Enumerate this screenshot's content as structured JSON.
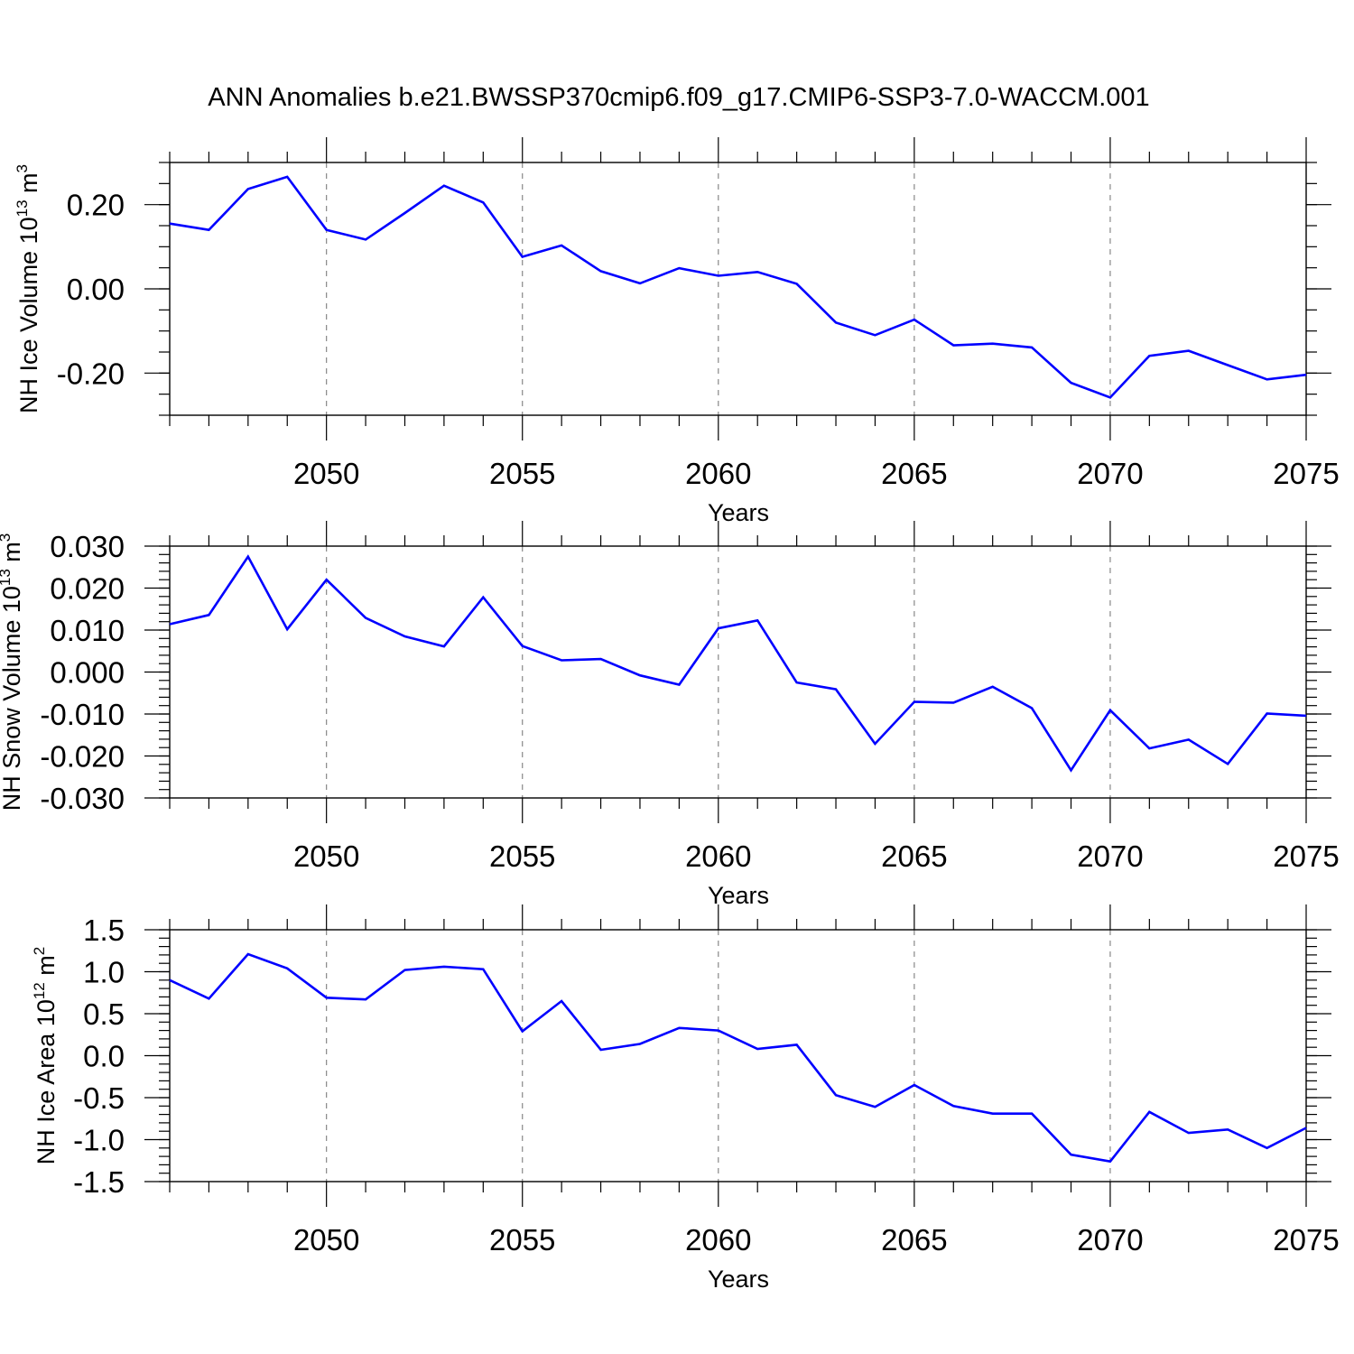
{
  "title": "ANN Anomalies b.e21.BWSSP370cmip6.f09_g17.CMIP6-SSP3-7.0-WACCM.001",
  "line_color": "#0000ff",
  "chart_data": [
    {
      "type": "line",
      "ylabel": {
        "main": "NH Ice Volume 10",
        "exp": "13",
        "unit": " m",
        "unit_exp": "3"
      },
      "xlabel": "Years",
      "xlim": [
        2046,
        2075
      ],
      "ylim": [
        -0.3,
        0.3
      ],
      "yticks": [
        -0.2,
        0.0,
        0.2
      ],
      "ytick_labels": [
        "-0.20",
        "0.00",
        "0.20"
      ],
      "yminor_step": 0.05,
      "xticks": [
        2050,
        2055,
        2060,
        2065,
        2070,
        2075
      ],
      "xtick_labels": [
        "2050",
        "2055",
        "2060",
        "2065",
        "2070",
        "2075"
      ],
      "grid": "vertical dashed at major x ticks",
      "x": [
        2046,
        2047,
        2048,
        2049,
        2050,
        2051,
        2052,
        2053,
        2054,
        2055,
        2056,
        2057,
        2058,
        2059,
        2060,
        2061,
        2062,
        2063,
        2064,
        2065,
        2066,
        2067,
        2068,
        2069,
        2070,
        2071,
        2072,
        2073,
        2074,
        2075
      ],
      "values": [
        0.155,
        0.14,
        0.237,
        0.266,
        0.14,
        0.117,
        0.18,
        0.245,
        0.205,
        0.076,
        0.103,
        0.042,
        0.013,
        0.049,
        0.031,
        0.04,
        0.012,
        -0.08,
        -0.11,
        -0.073,
        -0.134,
        -0.13,
        -0.139,
        -0.223,
        -0.258,
        -0.159,
        -0.147,
        -0.181,
        -0.215,
        -0.204
      ]
    },
    {
      "type": "line",
      "ylabel": {
        "main": "NH Snow Volume 10",
        "exp": "13",
        "unit": " m",
        "unit_exp": "3"
      },
      "xlabel": "Years",
      "xlim": [
        2046,
        2075
      ],
      "ylim": [
        -0.03,
        0.03
      ],
      "yticks": [
        -0.03,
        -0.02,
        -0.01,
        0.0,
        0.01,
        0.02,
        0.03
      ],
      "ytick_labels": [
        "-0.030",
        "-0.020",
        "-0.010",
        "0.000",
        "0.010",
        "0.020",
        "0.030"
      ],
      "yminor_step": 0.002,
      "xticks": [
        2050,
        2055,
        2060,
        2065,
        2070,
        2075
      ],
      "xtick_labels": [
        "2050",
        "2055",
        "2060",
        "2065",
        "2070",
        "2075"
      ],
      "grid": "vertical dashed at major x ticks",
      "x": [
        2046,
        2047,
        2048,
        2049,
        2050,
        2051,
        2052,
        2053,
        2054,
        2055,
        2056,
        2057,
        2058,
        2059,
        2060,
        2061,
        2062,
        2063,
        2064,
        2065,
        2066,
        2067,
        2068,
        2069,
        2070,
        2071,
        2072,
        2073,
        2074,
        2075
      ],
      "values": [
        0.0114,
        0.0136,
        0.0275,
        0.0102,
        0.022,
        0.0129,
        0.0085,
        0.0061,
        0.0178,
        0.0062,
        0.0028,
        0.0031,
        -0.0008,
        -0.003,
        0.0104,
        0.0123,
        -0.0025,
        -0.0041,
        -0.0171,
        -0.0071,
        -0.0073,
        -0.0035,
        -0.0086,
        -0.0234,
        -0.0091,
        -0.0182,
        -0.0161,
        -0.0219,
        -0.0099,
        -0.0104
      ]
    },
    {
      "type": "line",
      "ylabel": {
        "main": "NH Ice Area 10",
        "exp": "12",
        "unit": " m",
        "unit_exp": "2"
      },
      "xlabel": "Years",
      "xlim": [
        2046,
        2075
      ],
      "ylim": [
        -1.5,
        1.5
      ],
      "yticks": [
        -1.5,
        -1.0,
        -0.5,
        0.0,
        0.5,
        1.0,
        1.5
      ],
      "ytick_labels": [
        "-1.5",
        "-1.0",
        "-0.5",
        "0.0",
        "0.5",
        "1.0",
        "1.5"
      ],
      "yminor_step": 0.1,
      "xticks": [
        2050,
        2055,
        2060,
        2065,
        2070,
        2075
      ],
      "xtick_labels": [
        "2050",
        "2055",
        "2060",
        "2065",
        "2070",
        "2075"
      ],
      "grid": "vertical dashed at major x ticks",
      "x": [
        2046,
        2047,
        2048,
        2049,
        2050,
        2051,
        2052,
        2053,
        2054,
        2055,
        2056,
        2057,
        2058,
        2059,
        2060,
        2061,
        2062,
        2063,
        2064,
        2065,
        2066,
        2067,
        2068,
        2069,
        2070,
        2071,
        2072,
        2073,
        2074,
        2075
      ],
      "values": [
        0.9,
        0.68,
        1.21,
        1.04,
        0.69,
        0.67,
        1.02,
        1.06,
        1.03,
        0.29,
        0.65,
        0.07,
        0.14,
        0.33,
        0.3,
        0.08,
        0.13,
        -0.47,
        -0.61,
        -0.35,
        -0.6,
        -0.69,
        -0.69,
        -1.18,
        -1.26,
        -0.67,
        -0.92,
        -0.88,
        -1.1,
        -0.86
      ]
    }
  ]
}
